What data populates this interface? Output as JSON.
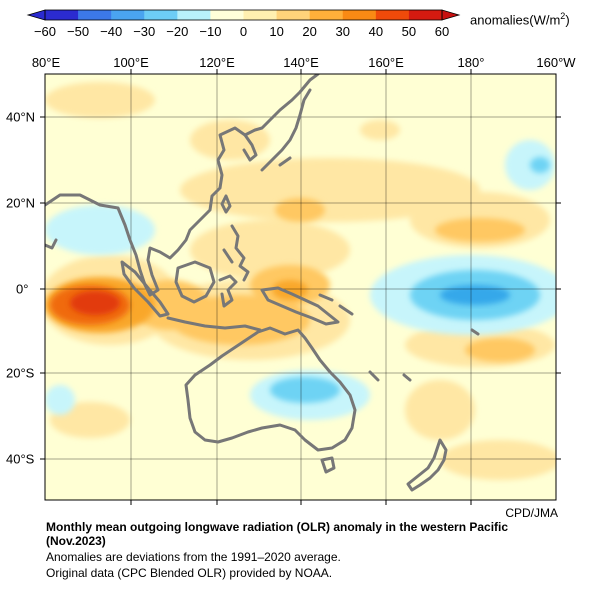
{
  "colorbar": {
    "ticks": [
      "−60",
      "−50",
      "−40",
      "−30",
      "−20",
      "−10",
      "0",
      "10",
      "20",
      "30",
      "40",
      "50",
      "60"
    ],
    "unit_label": "anomalies(W/m",
    "unit_sup": "2",
    "unit_close": ")",
    "colors": [
      "#2b2bd0",
      "#3c78e8",
      "#4aa4f0",
      "#6dcdf6",
      "#b8f1fb",
      "#ffffd9",
      "#fff0b0",
      "#ffd37a",
      "#ffb03a",
      "#f98a14",
      "#ef4a0a",
      "#d41a10"
    ]
  },
  "map": {
    "lon_labels": [
      "80°E",
      "100°E",
      "120°E",
      "140°E",
      "160°E",
      "180°",
      "160°W"
    ],
    "lat_labels": [
      "40°N",
      "20°N",
      "0°",
      "20°S",
      "40°S"
    ]
  },
  "credit": "CPD/JMA",
  "title": "Monthly mean outgoing longwave radiation (OLR) anomaly in the western Pacific (Nov.2023)",
  "notes": [
    "Anomalies are deviations from the 1991–2020 average.",
    "Original data (CPC Blended OLR) provided by NOAA."
  ]
}
